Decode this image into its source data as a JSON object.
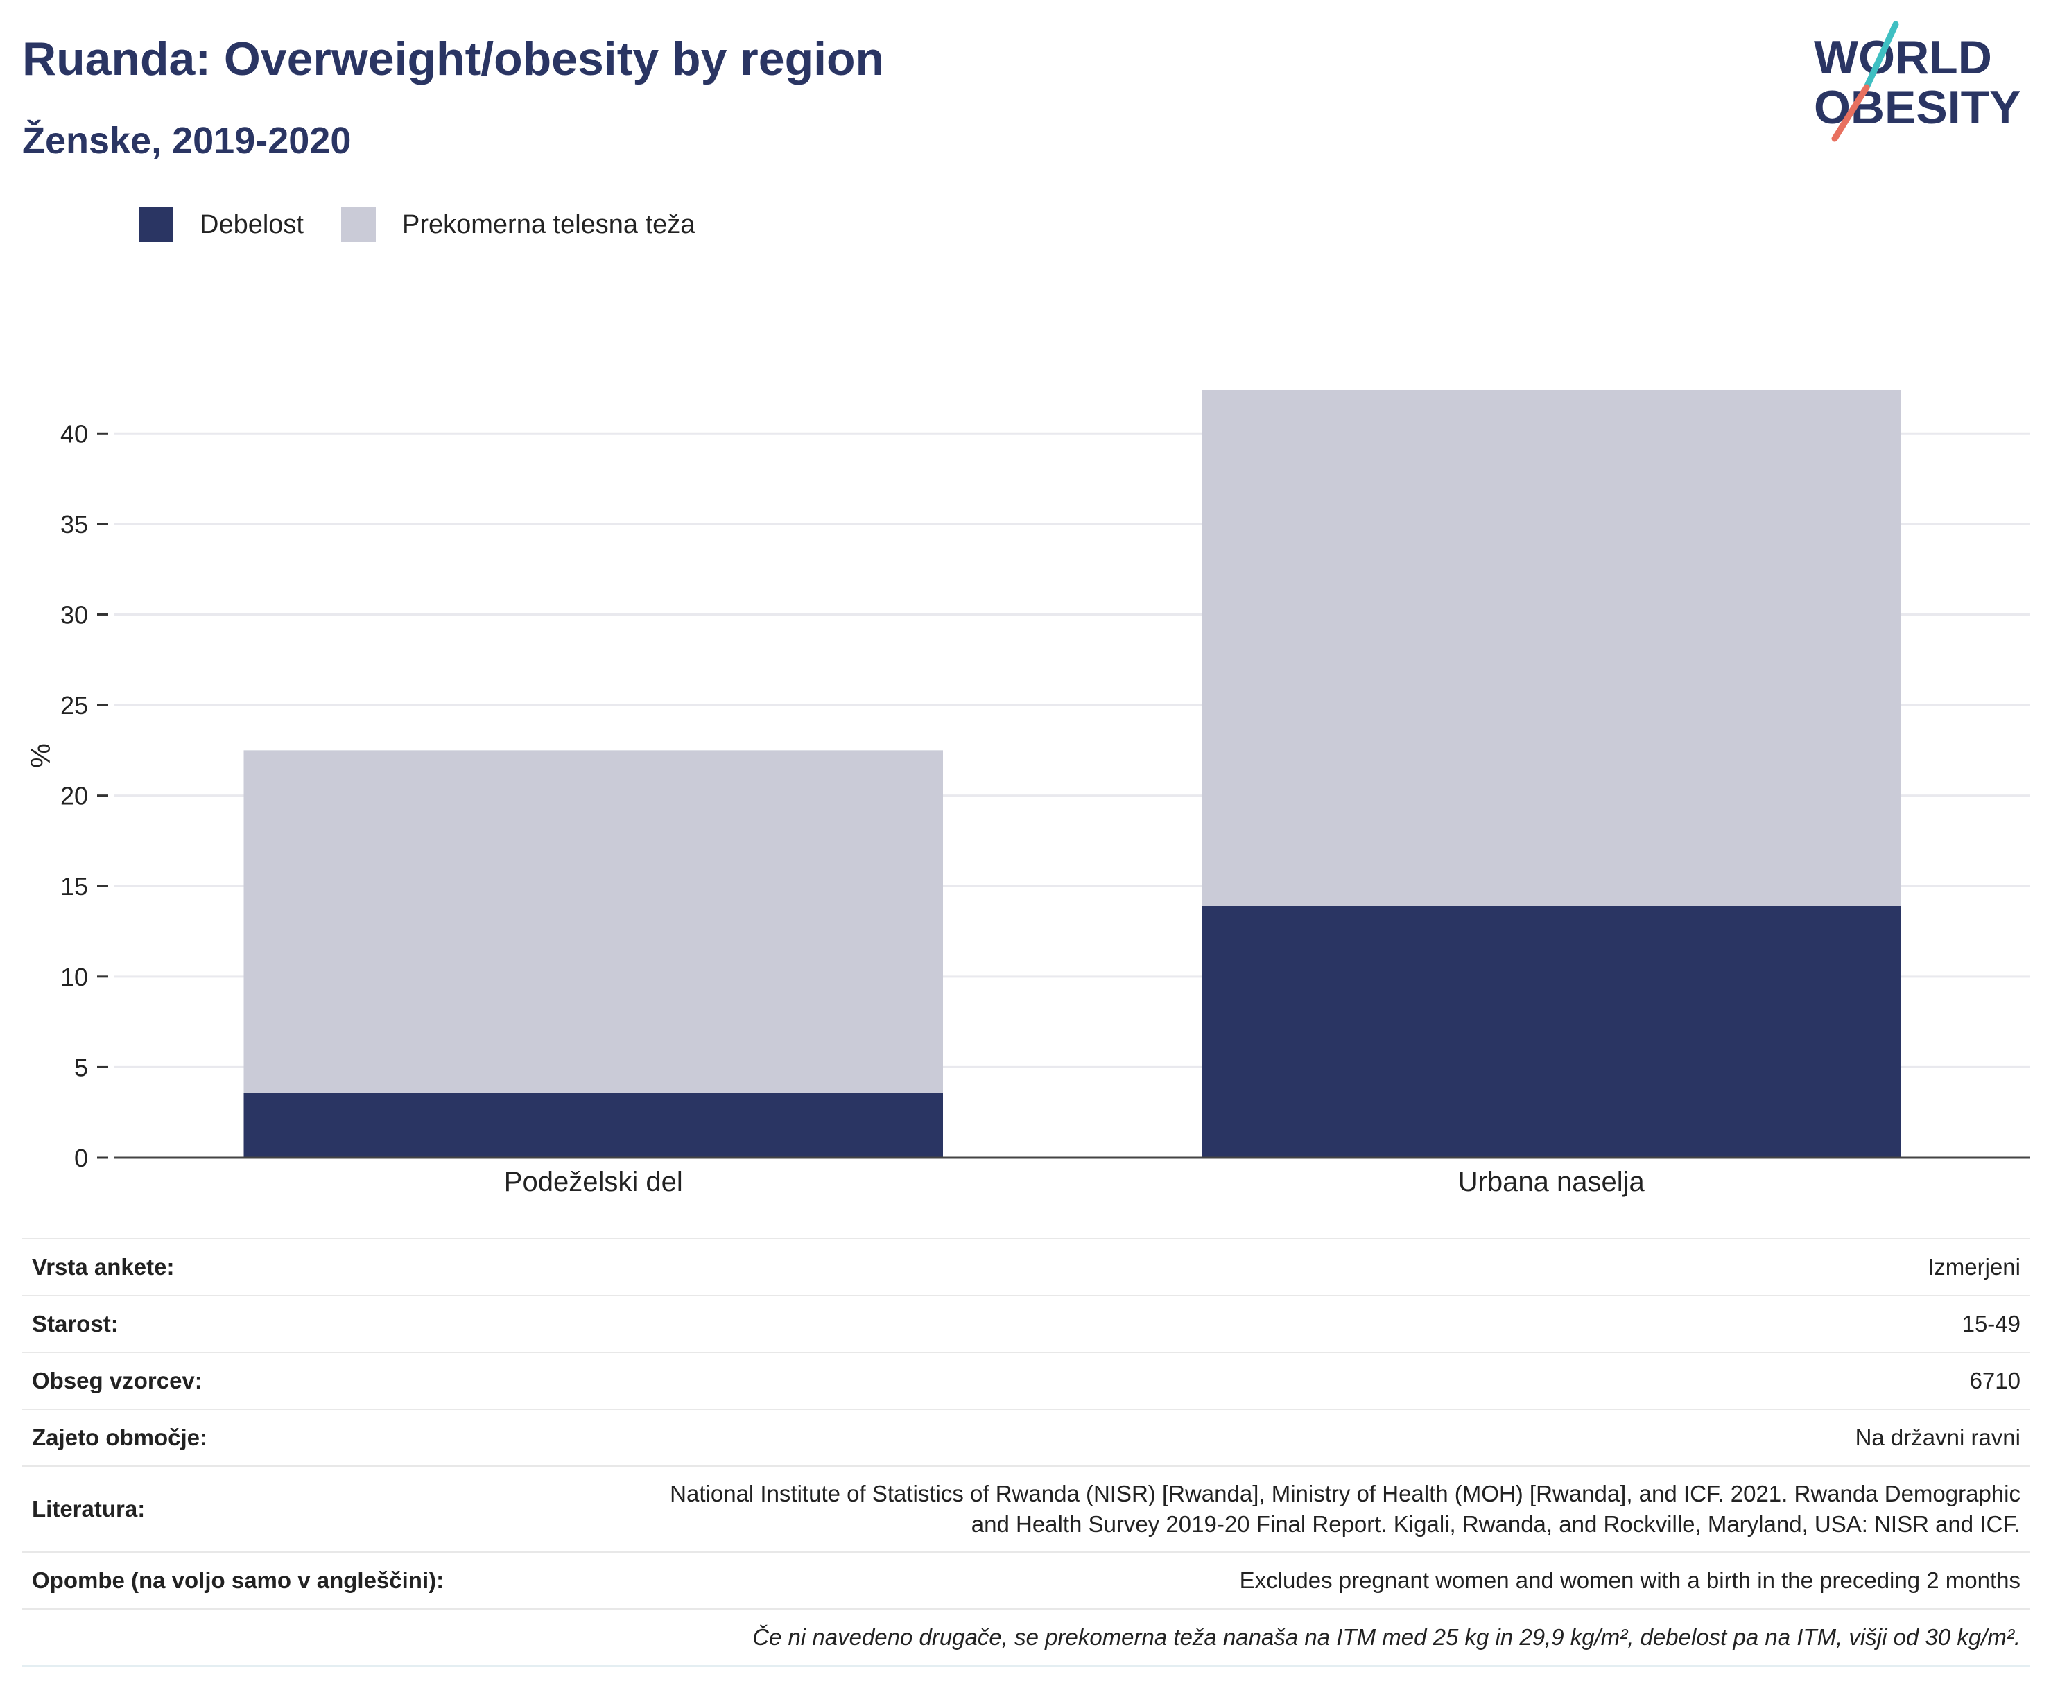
{
  "header": {
    "title": "Ruanda: Overweight/obesity by region",
    "subtitle": "Ženske, 2019-2020"
  },
  "logo": {
    "line1": "WORLD",
    "line2": "OBESITY"
  },
  "colors": {
    "obesity": "#2a3563",
    "overweight": "#cacbd7",
    "accent_teal": "#3fbfc2",
    "accent_coral": "#e8705f"
  },
  "chart_data": {
    "type": "bar",
    "stacked": true,
    "categories": [
      "Podeželski del",
      "Urbana naselja"
    ],
    "series": [
      {
        "name": "Debelost",
        "values": [
          3.6,
          13.9
        ]
      },
      {
        "name": "Prekomerna telesna teža",
        "values": [
          18.9,
          28.5
        ]
      }
    ],
    "ylabel": "%",
    "ylim": [
      0,
      42.5
    ],
    "yticks": [
      0,
      5,
      10,
      15,
      20,
      25,
      30,
      35,
      40
    ],
    "grid": true,
    "legend_position": "top-left"
  },
  "meta": {
    "rows": [
      {
        "label": "Vrsta ankete:",
        "value": "Izmerjeni"
      },
      {
        "label": "Starost:",
        "value": "15-49"
      },
      {
        "label": "Obseg vzorcev:",
        "value": "6710"
      },
      {
        "label": "Zajeto območje:",
        "value": "Na državni ravni"
      },
      {
        "label": "Literatura:",
        "value_line1": "National Institute of Statistics of Rwanda (NISR) [Rwanda], Ministry of Health (MOH) [Rwanda], and ICF. 2021. Rwanda Demographic",
        "value_line2": "and Health Survey 2019-20 Final Report. Kigali, Rwanda, and Rockville, Maryland, USA: NISR and ICF."
      },
      {
        "label": "Opombe (na voljo samo v angleščini):",
        "value": "Excludes pregnant women and women with a birth in the preceding 2 months"
      }
    ],
    "footnote": "Če ni navedeno drugače, se prekomerna teža nanaša na ITM med 25 kg in 29,9 kg/m², debelost pa na ITM, višji od 30 kg/m²."
  }
}
